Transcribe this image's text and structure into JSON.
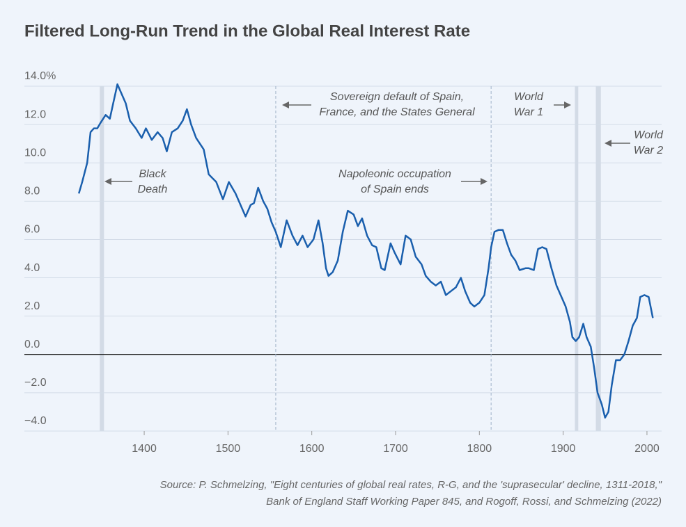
{
  "chart_data": {
    "type": "line",
    "title": "Filtered Long-Run Trend in the Global Real Interest Rate",
    "source": [
      "Source: P. Schmelzing, \"Eight centuries of global real rates, R-G, and the 'suprasecular' decline, 1311-2018,\"",
      "Bank of England Staff Working Paper 845, and Rogoff, Rossi, and Schmelzing (2022)"
    ],
    "x": [
      1322,
      1326,
      1332,
      1336,
      1340,
      1344,
      1348,
      1354,
      1359,
      1363,
      1368,
      1373,
      1378,
      1383,
      1390,
      1397,
      1402,
      1409,
      1416,
      1422,
      1427,
      1433,
      1440,
      1446,
      1451,
      1456,
      1462,
      1471,
      1477,
      1486,
      1494,
      1501,
      1509,
      1516,
      1521,
      1527,
      1531,
      1536,
      1542,
      1547,
      1552,
      1557,
      1563,
      1570,
      1577,
      1583,
      1589,
      1595,
      1602,
      1608,
      1613,
      1617,
      1620,
      1625,
      1631,
      1637,
      1643,
      1650,
      1655,
      1660,
      1666,
      1672,
      1677,
      1683,
      1687,
      1694,
      1699,
      1706,
      1712,
      1718,
      1724,
      1731,
      1736,
      1742,
      1748,
      1754,
      1760,
      1766,
      1772,
      1778,
      1783,
      1789,
      1794,
      1800,
      1806,
      1811,
      1814,
      1818,
      1823,
      1828,
      1833,
      1838,
      1843,
      1848,
      1855,
      1859,
      1865,
      1870,
      1875,
      1880,
      1886,
      1892,
      1898,
      1903,
      1908,
      1911,
      1915,
      1919,
      1924,
      1928,
      1933,
      1937,
      1941,
      1946,
      1950,
      1954,
      1958,
      1963,
      1968,
      1973,
      1978,
      1983,
      1988,
      1992,
      1997,
      2002,
      2007
    ],
    "series": [
      {
        "color": "#1a5fad",
        "values": [
          8.4,
          9.0,
          10.0,
          11.6,
          11.8,
          11.8,
          12.1,
          12.5,
          12.3,
          13.1,
          14.1,
          13.6,
          13.1,
          12.2,
          11.8,
          11.3,
          11.8,
          11.2,
          11.6,
          11.3,
          10.6,
          11.6,
          11.8,
          12.2,
          12.8,
          12.0,
          11.3,
          10.7,
          9.4,
          9.0,
          8.1,
          9.0,
          8.4,
          7.7,
          7.2,
          7.8,
          7.9,
          8.7,
          8.0,
          7.6,
          6.9,
          6.4,
          5.6,
          7.0,
          6.2,
          5.7,
          6.2,
          5.6,
          6.0,
          7.0,
          5.8,
          4.5,
          4.1,
          4.3,
          4.9,
          6.4,
          7.5,
          7.3,
          6.7,
          7.1,
          6.2,
          5.7,
          5.6,
          4.5,
          4.4,
          5.8,
          5.3,
          4.7,
          6.2,
          6.0,
          5.1,
          4.7,
          4.1,
          3.8,
          3.6,
          3.8,
          3.1,
          3.3,
          3.5,
          4.0,
          3.3,
          2.7,
          2.5,
          2.7,
          3.1,
          4.5,
          5.6,
          6.4,
          6.5,
          6.5,
          5.8,
          5.2,
          4.9,
          4.4,
          4.5,
          4.5,
          4.4,
          5.5,
          5.6,
          5.5,
          4.5,
          3.6,
          3.0,
          2.5,
          1.7,
          0.9,
          0.7,
          0.9,
          1.6,
          0.9,
          0.4,
          -0.7,
          -2.0,
          -2.6,
          -3.3,
          -3.0,
          -1.6,
          -0.3,
          -0.3,
          0.0,
          0.7,
          1.5,
          1.9,
          3.0,
          3.1,
          3.0,
          1.9
        ]
      }
    ],
    "xlim": [
      1257,
      2017.5
    ],
    "xticks": [
      1400,
      1500,
      1600,
      1700,
      1800,
      1900,
      2000
    ],
    "ylim": [
      -4,
      14
    ],
    "yticks": [
      {
        "value": 14,
        "label": "14.0%"
      },
      {
        "value": 12,
        "label": "12.0"
      },
      {
        "value": 10,
        "label": "10.0"
      },
      {
        "value": 8,
        "label": "8.0"
      },
      {
        "value": 6,
        "label": "6.0"
      },
      {
        "value": 4,
        "label": "4.0"
      },
      {
        "value": 2,
        "label": "2.0"
      },
      {
        "value": 0,
        "label": "0.0"
      },
      {
        "value": -2,
        "label": "−2.0"
      },
      {
        "value": -4,
        "label": "−4.0"
      }
    ],
    "grid": true,
    "reference_bands": [
      {
        "x": [
          1347,
          1352
        ]
      },
      {
        "x": [
          1914,
          1918
        ]
      },
      {
        "x": [
          1939,
          1945
        ]
      }
    ],
    "reference_lines": [
      {
        "x": 1557
      },
      {
        "x": 1814
      }
    ],
    "annotations": [
      {
        "lines": [
          "Black",
          "Death"
        ]
      },
      {
        "lines": [
          "Sovereign default of Spain,",
          "France, and the States General"
        ]
      },
      {
        "lines": [
          "Napoleonic occupation",
          "of Spain ends"
        ]
      },
      {
        "lines": [
          "World",
          "War 1"
        ]
      },
      {
        "lines": [
          "World",
          "War 2"
        ]
      }
    ]
  }
}
